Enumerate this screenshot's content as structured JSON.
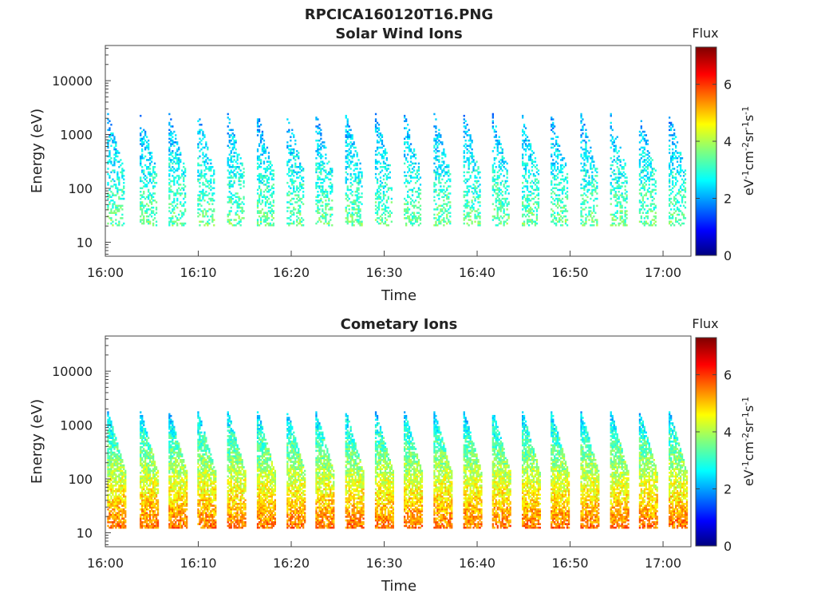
{
  "figure": {
    "title": "RPCICA160120T16.PNG"
  },
  "chart_data": [
    {
      "type": "heatmap",
      "title": "Solar Wind Ions",
      "xlabel": "Time",
      "ylabel": "Energy (eV)",
      "x_tick_labels": [
        "16:00",
        "16:10",
        "16:20",
        "16:30",
        "16:40",
        "16:50",
        "17:00"
      ],
      "x_ticks_minutes": [
        0,
        10,
        20,
        30,
        40,
        50,
        60
      ],
      "xlim_minutes": [
        0,
        63
      ],
      "y_tick_labels": [
        "10",
        "100",
        "1000",
        "10000"
      ],
      "y_ticks": [
        10,
        100,
        1000,
        10000
      ],
      "ylim": [
        5.5,
        45000
      ],
      "y_scale": "log",
      "colorbar": {
        "label": "Flux",
        "units_label": "eV^-1cm^-2sr^-1s^-1",
        "tick_labels": [
          "0",
          "2",
          "4",
          "6"
        ],
        "ticks": [
          0,
          2,
          4,
          6
        ],
        "range": [
          0,
          7.3
        ],
        "colormap": "jet"
      },
      "sweep_start_minutes": [
        0.2,
        3.7,
        6.8,
        9.9,
        13.1,
        16.3,
        19.5,
        22.6,
        25.8,
        29.0,
        32.1,
        35.3,
        38.5,
        41.6,
        44.8,
        47.9,
        51.1,
        54.3,
        57.4,
        60.6
      ],
      "sweep_width_minutes": 1.8,
      "energy_band_low_ev": 20,
      "energy_band_high_ev": 2500,
      "flux_at_low_energy": 3.5,
      "flux_at_high_energy": 2.0,
      "fill_density": 0.38
    },
    {
      "type": "heatmap",
      "title": "Cometary Ions",
      "xlabel": "Time",
      "ylabel": "Energy (eV)",
      "x_tick_labels": [
        "16:00",
        "16:10",
        "16:20",
        "16:30",
        "16:40",
        "16:50",
        "17:00"
      ],
      "x_ticks_minutes": [
        0,
        10,
        20,
        30,
        40,
        50,
        60
      ],
      "xlim_minutes": [
        0,
        63
      ],
      "y_tick_labels": [
        "10",
        "100",
        "1000",
        "10000"
      ],
      "y_ticks": [
        10,
        100,
        1000,
        10000
      ],
      "ylim": [
        5.5,
        45000
      ],
      "y_scale": "log",
      "colorbar": {
        "label": "Flux",
        "units_label": "eV^-1cm^-2sr^-1s^-1",
        "tick_labels": [
          "0",
          "2",
          "4",
          "6"
        ],
        "ticks": [
          0,
          2,
          4,
          6
        ],
        "range": [
          0,
          7.3
        ],
        "colormap": "jet"
      },
      "sweep_start_minutes": [
        0.2,
        3.7,
        6.8,
        9.9,
        13.1,
        16.3,
        19.5,
        22.6,
        25.8,
        29.0,
        32.1,
        35.3,
        38.5,
        41.6,
        44.8,
        47.9,
        51.1,
        54.3,
        57.4,
        60.6
      ],
      "sweep_width_minutes": 2.0,
      "energy_band_low_ev": 12,
      "energy_band_high_ev": 1800,
      "flux_at_low_energy": 5.6,
      "flux_at_high_energy": 2.3,
      "fill_density": 0.78
    }
  ]
}
